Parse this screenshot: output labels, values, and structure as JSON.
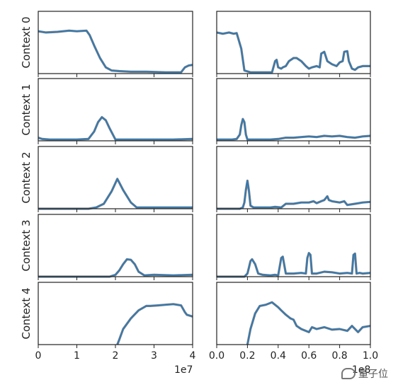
{
  "chart_data": {
    "type": "line",
    "rows": [
      "Context 0",
      "Context 1",
      "Context 2",
      "Context 3",
      "Context 4"
    ],
    "left": {
      "xlim": [
        0,
        40000000
      ],
      "xticks": [
        0,
        10000000,
        20000000,
        30000000,
        40000000
      ],
      "xtick_labels": [
        "0",
        "1",
        "2",
        "3",
        "4"
      ],
      "x_exponent_label": "1e7",
      "ylim": [
        0,
        1
      ],
      "series": [
        {
          "x": [
            0,
            2,
            5,
            8,
            10,
            12.5,
            13.3,
            14.5,
            16,
            17.5,
            19,
            21,
            24,
            28,
            33,
            37,
            38,
            39,
            40
          ],
          "y": [
            0.68,
            0.66,
            0.67,
            0.69,
            0.68,
            0.69,
            0.62,
            0.45,
            0.25,
            0.1,
            0.05,
            0.04,
            0.03,
            0.03,
            0.02,
            0.02,
            0.1,
            0.13,
            0.14
          ]
        },
        {
          "x": [
            0,
            1,
            3,
            6,
            10,
            13,
            14.5,
            15.5,
            16.5,
            17.5,
            18.5,
            20,
            22,
            26,
            30,
            35,
            40
          ],
          "y": [
            0.05,
            0.03,
            0.02,
            0.02,
            0.02,
            0.03,
            0.15,
            0.3,
            0.38,
            0.33,
            0.2,
            0.02,
            0.02,
            0.02,
            0.02,
            0.02,
            0.03
          ]
        },
        {
          "x": [
            0,
            10,
            13,
            15,
            17,
            19,
            20.5,
            22,
            24,
            25.5,
            27,
            30,
            35,
            40
          ],
          "y": [
            0.0,
            0.0,
            0.0,
            0.02,
            0.08,
            0.28,
            0.48,
            0.3,
            0.1,
            0.02,
            0.02,
            0.02,
            0.02,
            0.02
          ]
        },
        {
          "x": [
            0,
            15,
            18.5,
            20,
            21,
            22,
            23,
            24,
            25,
            26,
            27.5,
            30,
            35,
            40
          ],
          "y": [
            0.0,
            0.0,
            0.0,
            0.03,
            0.1,
            0.2,
            0.28,
            0.27,
            0.2,
            0.08,
            0.02,
            0.03,
            0.02,
            0.03
          ]
        },
        {
          "x": [
            20.5,
            21,
            22,
            24,
            26,
            28,
            29,
            31,
            33,
            35,
            37,
            38,
            38.5,
            40
          ],
          "y": [
            0.0,
            0.08,
            0.25,
            0.42,
            0.55,
            0.62,
            0.62,
            0.63,
            0.64,
            0.65,
            0.63,
            0.52,
            0.48,
            0.45
          ]
        }
      ]
    },
    "right": {
      "xlim": [
        0,
        1
      ],
      "xticks": [
        0,
        0.2,
        0.4,
        0.6,
        0.8,
        1.0
      ],
      "xtick_labels": [
        "0.0",
        "0.2",
        "0.4",
        "0.6",
        "0.8",
        "1.0"
      ],
      "x_exponent_label": "1e8",
      "ylim": [
        0,
        1
      ],
      "series": [
        {
          "x": [
            0,
            0.04,
            0.08,
            0.11,
            0.13,
            0.16,
            0.18,
            0.22,
            0.26,
            0.3,
            0.36,
            0.38,
            0.39,
            0.4,
            0.42,
            0.43,
            0.45,
            0.47,
            0.5,
            0.52,
            0.55,
            0.58,
            0.6,
            0.62,
            0.65,
            0.67,
            0.68,
            0.7,
            0.72,
            0.75,
            0.78,
            0.8,
            0.82,
            0.83,
            0.85,
            0.86,
            0.88,
            0.9,
            0.92,
            0.95,
            1.0
          ],
          "y": [
            0.66,
            0.64,
            0.66,
            0.64,
            0.65,
            0.4,
            0.05,
            0.02,
            0.02,
            0.02,
            0.02,
            0.2,
            0.22,
            0.1,
            0.08,
            0.1,
            0.12,
            0.2,
            0.25,
            0.25,
            0.2,
            0.12,
            0.08,
            0.1,
            0.12,
            0.1,
            0.32,
            0.35,
            0.2,
            0.15,
            0.12,
            0.18,
            0.2,
            0.35,
            0.36,
            0.2,
            0.08,
            0.06,
            0.1,
            0.12,
            0.12
          ]
        },
        {
          "x": [
            0,
            0.05,
            0.1,
            0.13,
            0.15,
            0.16,
            0.17,
            0.18,
            0.19,
            0.2,
            0.25,
            0.3,
            0.35,
            0.4,
            0.45,
            0.5,
            0.55,
            0.6,
            0.65,
            0.7,
            0.75,
            0.8,
            0.85,
            0.9,
            0.95,
            1.0
          ],
          "y": [
            0.02,
            0.02,
            0.02,
            0.03,
            0.1,
            0.25,
            0.35,
            0.3,
            0.1,
            0.02,
            0.02,
            0.02,
            0.02,
            0.03,
            0.05,
            0.05,
            0.06,
            0.07,
            0.06,
            0.08,
            0.07,
            0.08,
            0.06,
            0.05,
            0.07,
            0.08
          ]
        },
        {
          "x": [
            0,
            0.1,
            0.15,
            0.17,
            0.18,
            0.19,
            0.2,
            0.21,
            0.22,
            0.24,
            0.3,
            0.35,
            0.38,
            0.42,
            0.45,
            0.5,
            0.55,
            0.6,
            0.63,
            0.65,
            0.68,
            0.7,
            0.72,
            0.73,
            0.75,
            0.8,
            0.83,
            0.85,
            0.9,
            0.95,
            1.0
          ],
          "y": [
            0.0,
            0.0,
            0.0,
            0.02,
            0.1,
            0.3,
            0.45,
            0.28,
            0.05,
            0.02,
            0.02,
            0.02,
            0.03,
            0.02,
            0.08,
            0.08,
            0.1,
            0.1,
            0.12,
            0.09,
            0.12,
            0.14,
            0.2,
            0.14,
            0.12,
            0.1,
            0.12,
            0.06,
            0.08,
            0.1,
            0.11
          ]
        },
        {
          "x": [
            0,
            0.1,
            0.18,
            0.2,
            0.21,
            0.22,
            0.23,
            0.25,
            0.27,
            0.3,
            0.35,
            0.38,
            0.4,
            0.42,
            0.43,
            0.45,
            0.5,
            0.55,
            0.58,
            0.59,
            0.6,
            0.61,
            0.62,
            0.65,
            0.7,
            0.75,
            0.8,
            0.85,
            0.88,
            0.89,
            0.9,
            0.91,
            0.93,
            0.95,
            1.0
          ],
          "y": [
            0.0,
            0.0,
            0.0,
            0.05,
            0.15,
            0.25,
            0.28,
            0.2,
            0.05,
            0.03,
            0.02,
            0.03,
            0.02,
            0.3,
            0.32,
            0.05,
            0.05,
            0.06,
            0.05,
            0.3,
            0.38,
            0.35,
            0.05,
            0.05,
            0.08,
            0.07,
            0.05,
            0.06,
            0.05,
            0.35,
            0.37,
            0.05,
            0.06,
            0.05,
            0.06
          ]
        },
        {
          "x": [
            0.2,
            0.22,
            0.25,
            0.28,
            0.32,
            0.36,
            0.4,
            0.42,
            0.45,
            0.48,
            0.5,
            0.52,
            0.55,
            0.6,
            0.62,
            0.65,
            0.7,
            0.75,
            0.8,
            0.85,
            0.88,
            0.92,
            0.95,
            1.0
          ],
          "y": [
            0.0,
            0.25,
            0.5,
            0.62,
            0.64,
            0.68,
            0.6,
            0.55,
            0.48,
            0.42,
            0.4,
            0.3,
            0.25,
            0.2,
            0.28,
            0.25,
            0.28,
            0.24,
            0.25,
            0.22,
            0.3,
            0.2,
            0.28,
            0.3
          ]
        }
      ]
    },
    "colors": {
      "line": "#2e7ab8",
      "shadow": "#555555",
      "axis": "#222222"
    }
  },
  "watermark": {
    "text": "量子位"
  }
}
